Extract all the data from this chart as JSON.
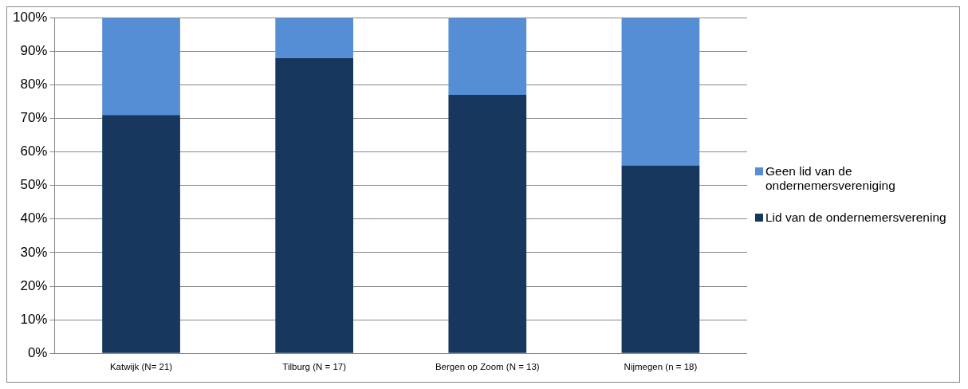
{
  "chart_data": {
    "type": "bar",
    "stacked": true,
    "categories": [
      "Katwijk (N= 21)",
      "Tilburg (N = 17)",
      "Bergen op Zoom (N = 13)",
      "Nijmegen (n = 18)"
    ],
    "series": [
      {
        "name": "Lid van de ondernemersverening",
        "color": "#17375e",
        "values": [
          71,
          88,
          77,
          56
        ]
      },
      {
        "name": "Geen lid van de ondernemersvereniging",
        "color": "#558ed5",
        "values": [
          29,
          12,
          23,
          44
        ]
      }
    ],
    "ylim": [
      0,
      100
    ],
    "yticks": [
      {
        "value": 0,
        "label": "0%"
      },
      {
        "value": 10,
        "label": "10%"
      },
      {
        "value": 20,
        "label": "20%"
      },
      {
        "value": 30,
        "label": "30%"
      },
      {
        "value": 40,
        "label": "40%"
      },
      {
        "value": 50,
        "label": "50%"
      },
      {
        "value": 60,
        "label": "60%"
      },
      {
        "value": 70,
        "label": "70%"
      },
      {
        "value": 80,
        "label": "80%"
      },
      {
        "value": 90,
        "label": "90%"
      },
      {
        "value": 100,
        "label": "100%"
      }
    ],
    "grid": "y",
    "legend": "right"
  }
}
